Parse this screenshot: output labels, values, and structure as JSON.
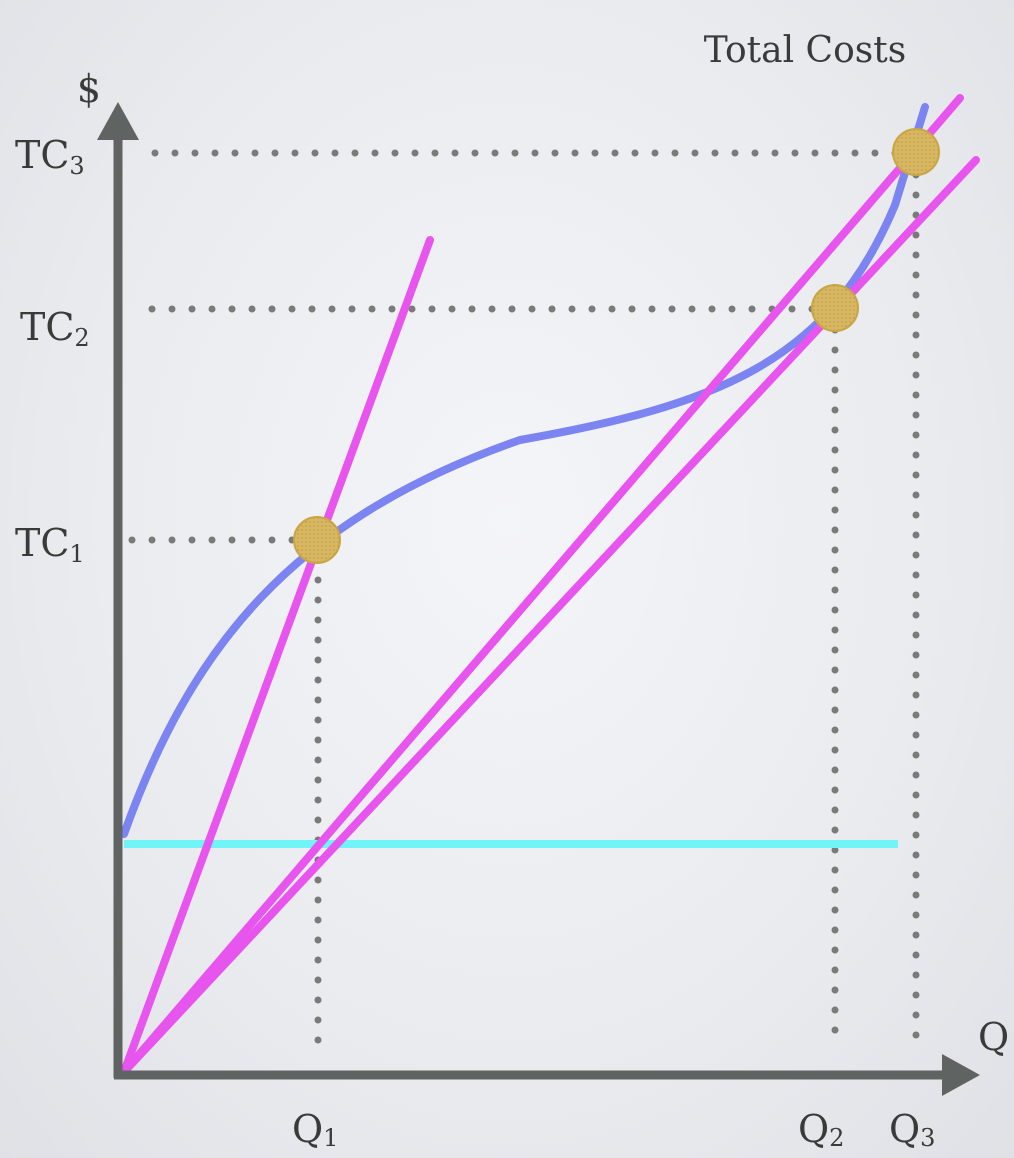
{
  "title": "Total Costs",
  "y_axis_label": "$",
  "x_axis_label": "Q",
  "y_ticks": [
    {
      "base": "TC",
      "sub": "3"
    },
    {
      "base": "TC",
      "sub": "2"
    },
    {
      "base": "TC",
      "sub": "1"
    }
  ],
  "x_ticks": [
    {
      "base": "Q",
      "sub": "1"
    },
    {
      "base": "Q",
      "sub": "2"
    },
    {
      "base": "Q",
      "sub": "3"
    }
  ],
  "colors": {
    "axis": "#5f6362",
    "total_cost_curve": "#7b84f0",
    "ray_lines": "#e855ee",
    "fixed_cost_line": "#6ff5f7",
    "guide_dots": "#7a7a7a",
    "point_fill": "#d4b45c"
  }
}
